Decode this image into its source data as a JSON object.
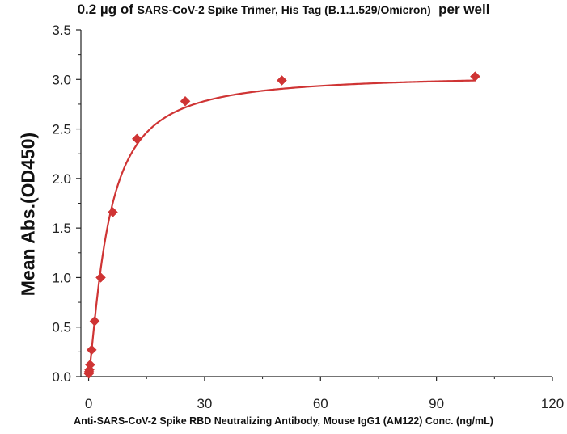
{
  "chart_data": {
    "type": "scatter",
    "title_parts": [
      "0.2 µg of ",
      "SARS-CoV-2 Spike Trimer, His Tag (B.1.1.529/Omicron)",
      "  per well"
    ],
    "xlabel": "Anti-SARS-CoV-2 Spike RBD Neutralizing Antibody, Mouse IgG1 (AM122) Conc. (ng/mL)",
    "ylabel": "Mean Abs.(OD450)",
    "xlim": [
      -2,
      120
    ],
    "ylim": [
      0,
      3.5
    ],
    "xticks": [
      "0",
      "30",
      "60",
      "90",
      "120"
    ],
    "yticks": [
      "0.0",
      "0.5",
      "1.0",
      "1.5",
      "2.0",
      "2.5",
      "3.0",
      "3.5"
    ],
    "grid": false,
    "legend": "none",
    "series": [
      {
        "marker": "diamond",
        "color": "#cf3434",
        "x": [
          0.05,
          0.1,
          0.2,
          0.39,
          0.78,
          1.56,
          3.13,
          6.25,
          12.5,
          25,
          50,
          100
        ],
        "y": [
          0.03,
          0.05,
          0.07,
          0.12,
          0.27,
          0.56,
          1.0,
          1.66,
          2.4,
          2.78,
          2.99,
          3.03
        ]
      }
    ],
    "fit_curve": {
      "model": "4PL",
      "color": "#cf3434",
      "bottom": 0.02,
      "top": 3.05,
      "ec50": 5.0,
      "hill": 1.3
    }
  }
}
